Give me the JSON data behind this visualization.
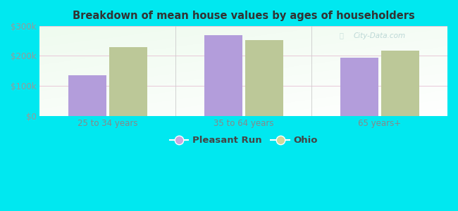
{
  "title": "Breakdown of mean house values by ages of householders",
  "categories": [
    "25 to 34 years",
    "35 to 64 years",
    "65 years+"
  ],
  "pleasant_run_values": [
    135000,
    268000,
    193000
  ],
  "ohio_values": [
    228000,
    253000,
    218000
  ],
  "bar_color_pleasant": "#b39ddb",
  "bar_color_ohio": "#bcc898",
  "ylim": [
    0,
    300000
  ],
  "yticks": [
    0,
    100000,
    200000,
    300000
  ],
  "ytick_labels": [
    "$0",
    "$100k",
    "$200k",
    "$300k"
  ],
  "background_outer": "#00e8f0",
  "legend_labels": [
    "Pleasant Run",
    "Ohio"
  ],
  "legend_color_pleasant": "#c9a8e0",
  "legend_color_ohio": "#d0d89a",
  "bar_width": 0.28,
  "watermark": "City-Data.com"
}
